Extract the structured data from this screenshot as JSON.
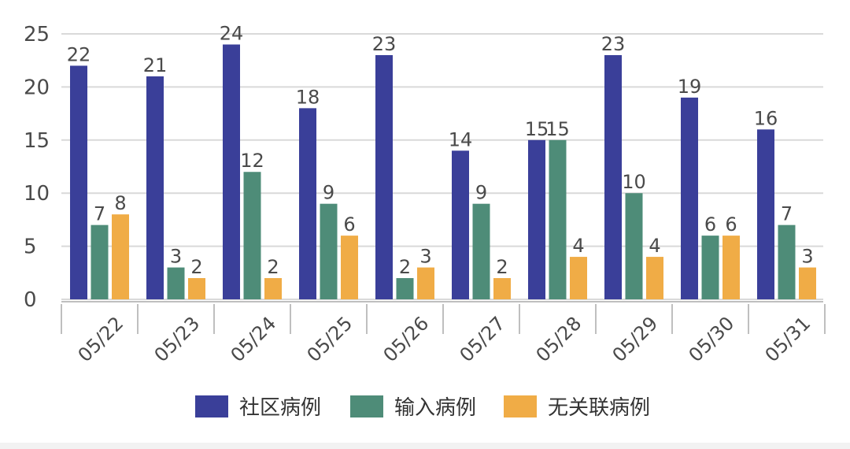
{
  "chart_data": {
    "type": "bar",
    "categories": [
      "05/22",
      "05/23",
      "05/24",
      "05/25",
      "05/26",
      "05/27",
      "05/28",
      "05/29",
      "05/30",
      "05/31"
    ],
    "series": [
      {
        "name": "社区病例",
        "color": "#3a3f99",
        "values": [
          22,
          21,
          24,
          18,
          23,
          14,
          15,
          23,
          19,
          16
        ]
      },
      {
        "name": "输入病例",
        "color": "#4e8c78",
        "values": [
          7,
          3,
          12,
          9,
          2,
          9,
          15,
          10,
          6,
          7
        ]
      },
      {
        "name": "无关联病例",
        "color": "#f0ac46",
        "values": [
          8,
          2,
          2,
          6,
          3,
          2,
          4,
          4,
          6,
          3
        ]
      }
    ],
    "yticks": [
      0,
      5,
      10,
      15,
      20,
      25
    ],
    "ylim": [
      0,
      25
    ],
    "grid": true,
    "legend_position": "bottom"
  }
}
